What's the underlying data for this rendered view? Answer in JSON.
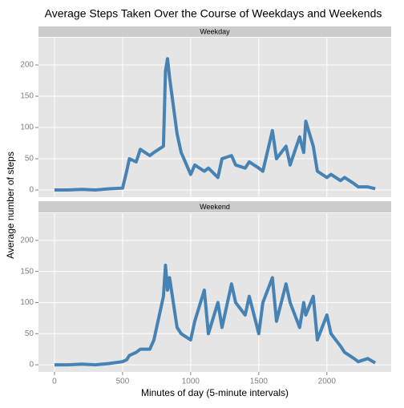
{
  "chart_data": {
    "type": "line",
    "facet": true,
    "title": "Average Steps Taken Over the Course of Weekdays and Weekends",
    "x_label": "Minutes of day (5-minute intervals)",
    "y_label": "Average number of steps",
    "x": [
      0,
      100,
      200,
      300,
      400,
      500,
      530,
      550,
      600,
      630,
      700,
      730,
      800,
      815,
      830,
      845,
      900,
      930,
      1000,
      1030,
      1100,
      1130,
      1200,
      1230,
      1300,
      1330,
      1400,
      1430,
      1500,
      1530,
      1600,
      1630,
      1700,
      1730,
      1800,
      1830,
      1845,
      1900,
      1930,
      2000,
      2030,
      2100,
      2130,
      2200,
      2230,
      2300,
      2355
    ],
    "series": [
      {
        "name": "Weekday",
        "color": "#4682b4",
        "values": [
          0,
          0,
          1,
          0,
          2,
          3,
          30,
          50,
          45,
          65,
          55,
          60,
          70,
          190,
          210,
          180,
          90,
          60,
          25,
          40,
          30,
          35,
          20,
          50,
          55,
          40,
          35,
          45,
          35,
          30,
          95,
          50,
          70,
          40,
          85,
          60,
          110,
          70,
          30,
          20,
          25,
          15,
          20,
          10,
          5,
          5,
          2
        ]
      },
      {
        "name": "Weekend",
        "color": "#4682b4",
        "values": [
          0,
          0,
          1,
          0,
          2,
          5,
          8,
          15,
          20,
          25,
          25,
          40,
          110,
          160,
          120,
          140,
          60,
          50,
          40,
          70,
          120,
          50,
          100,
          60,
          130,
          100,
          80,
          110,
          50,
          100,
          140,
          70,
          130,
          100,
          60,
          100,
          80,
          110,
          40,
          80,
          50,
          30,
          20,
          10,
          5,
          10,
          3
        ]
      }
    ],
    "xlim": [
      -117.5,
      2472
    ],
    "xticks": [
      0,
      500,
      1000,
      1500,
      2000
    ],
    "ylim": [
      -11.5,
      243.6
    ],
    "yticks": [
      0,
      50,
      100,
      150,
      200
    ],
    "grid": true
  }
}
